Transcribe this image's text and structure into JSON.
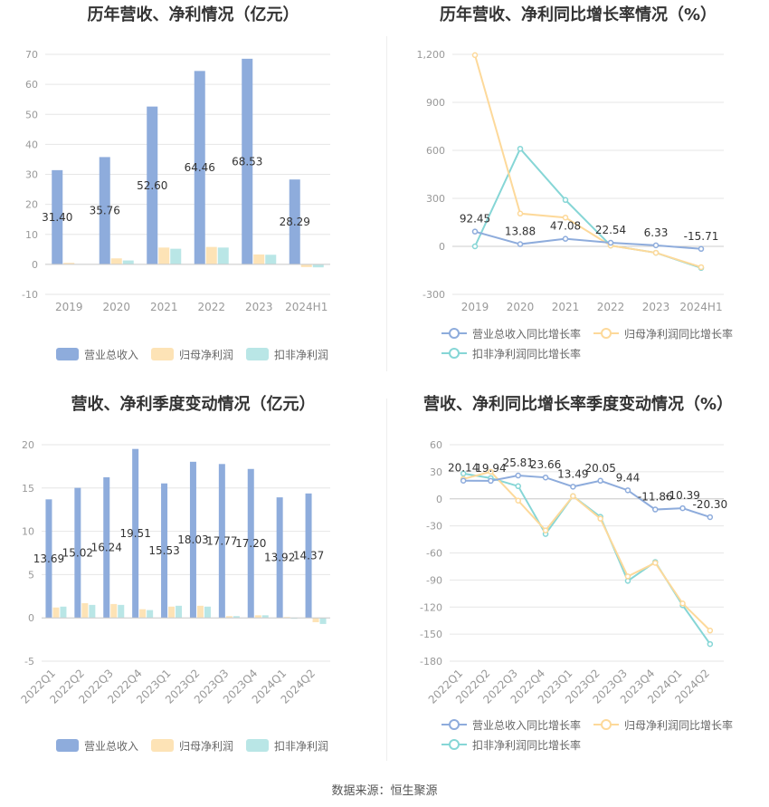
{
  "source": "数据来源：恒生聚源",
  "colors": {
    "revenue": "#8eacdc",
    "parent": "#fde3b6",
    "deduct": "#b9e6e6",
    "revenue_line": "#8eacdc",
    "parent_line": "#fdd99a",
    "deduct_line": "#86d6d6"
  },
  "chart_data": [
    {
      "type": "bar",
      "title": "历年营收、净利情况（亿元）",
      "categories": [
        "2019",
        "2020",
        "2021",
        "2022",
        "2023",
        "2024H1"
      ],
      "yticks": [
        "-10",
        "0",
        "10",
        "20",
        "30",
        "40",
        "50",
        "60",
        "70"
      ],
      "ylim": [
        -10,
        70
      ],
      "legend": [
        "营业总收入",
        "归母净利润",
        "扣非净利润"
      ],
      "series": [
        {
          "name": "营业总收入",
          "values": [
            31.4,
            35.76,
            52.6,
            64.46,
            68.53,
            28.29
          ],
          "labels": [
            "31.40",
            "35.76",
            "52.60",
            "64.46",
            "68.53",
            "28.29"
          ]
        },
        {
          "name": "归母净利润",
          "values": [
            0.5,
            2.0,
            5.6,
            5.8,
            3.3,
            -0.9
          ]
        },
        {
          "name": "扣非净利润",
          "values": [
            0.1,
            1.3,
            5.2,
            5.6,
            3.2,
            -1.0
          ]
        }
      ]
    },
    {
      "type": "line",
      "title": "历年营收、净利同比增长率情况（%）",
      "categories": [
        "2019",
        "2020",
        "2021",
        "2022",
        "2023",
        "2024H1"
      ],
      "yticks": [
        "-300",
        "0",
        "300",
        "600",
        "900",
        "1,200"
      ],
      "ylim": [
        -300,
        1200
      ],
      "legend": [
        "营业总收入同比增长率",
        "归母净利润同比增长率",
        "扣非净利润同比增长率"
      ],
      "series": [
        {
          "name": "营业总收入同比增长率",
          "values": [
            92.45,
            13.88,
            47.08,
            22.54,
            6.33,
            -15.71
          ],
          "labels": [
            "92.45",
            "13.88",
            "47.08",
            "22.54",
            "6.33",
            "-15.71"
          ]
        },
        {
          "name": "归母净利润同比增长率",
          "values": [
            1195,
            205,
            180,
            5,
            -40,
            -130
          ]
        },
        {
          "name": "扣非净利润同比增长率",
          "values": [
            0,
            610,
            290,
            5,
            -40,
            -135
          ]
        }
      ]
    },
    {
      "type": "bar",
      "title": "营收、净利季度变动情况（亿元）",
      "categories": [
        "2022Q1",
        "2022Q2",
        "2022Q3",
        "2022Q4",
        "2023Q1",
        "2023Q2",
        "2023Q3",
        "2023Q4",
        "2024Q1",
        "2024Q2"
      ],
      "yticks": [
        "-5",
        "0",
        "5",
        "10",
        "15",
        "20"
      ],
      "ylim": [
        -5,
        20
      ],
      "legend": [
        "营业总收入",
        "归母净利润",
        "扣非净利润"
      ],
      "series": [
        {
          "name": "营业总收入",
          "values": [
            13.69,
            15.02,
            16.24,
            19.51,
            15.53,
            18.03,
            17.77,
            17.2,
            13.92,
            14.37
          ],
          "labels": [
            "13.69",
            "15.02",
            "16.24",
            "19.51",
            "15.53",
            "18.03",
            "17.77",
            "17.20",
            "13.92",
            "14.37"
          ]
        },
        {
          "name": "归母净利润",
          "values": [
            1.2,
            1.7,
            1.6,
            1.0,
            1.3,
            1.4,
            0.2,
            0.3,
            0.1,
            -0.5
          ]
        },
        {
          "name": "扣非净利润",
          "values": [
            1.3,
            1.5,
            1.5,
            0.9,
            1.4,
            1.3,
            0.2,
            0.3,
            -0.1,
            -0.7
          ]
        }
      ]
    },
    {
      "type": "line",
      "title": "营收、净利同比增长率季度变动情况（%）",
      "categories": [
        "2022Q1",
        "2022Q2",
        "2022Q3",
        "2022Q4",
        "2023Q1",
        "2023Q2",
        "2023Q3",
        "2023Q4",
        "2024Q1",
        "2024Q2"
      ],
      "yticks": [
        "-180",
        "-150",
        "-120",
        "-90",
        "-60",
        "-30",
        "0",
        "30",
        "60"
      ],
      "ylim": [
        -180,
        60
      ],
      "legend": [
        "营业总收入同比增长率",
        "归母净利润同比增长率",
        "扣非净利润同比增长率"
      ],
      "series": [
        {
          "name": "营业总收入同比增长率",
          "values": [
            20.14,
            19.94,
            25.81,
            23.66,
            13.49,
            20.05,
            9.44,
            -11.86,
            -10.39,
            -20.3
          ],
          "labels": [
            "20.14",
            "19.94",
            "25.81",
            "23.66",
            "13.49",
            "20.05",
            "9.44",
            "-11.86",
            "-10.39",
            "-20.30"
          ]
        },
        {
          "name": "归母净利润同比增长率",
          "values": [
            22,
            30,
            -2,
            -35,
            3,
            -22,
            -86,
            -71,
            -116,
            -146
          ]
        },
        {
          "name": "扣非净利润同比增长率",
          "values": [
            28,
            23,
            14,
            -39,
            3,
            -20,
            -91,
            -70,
            -118,
            -161
          ]
        }
      ]
    }
  ]
}
